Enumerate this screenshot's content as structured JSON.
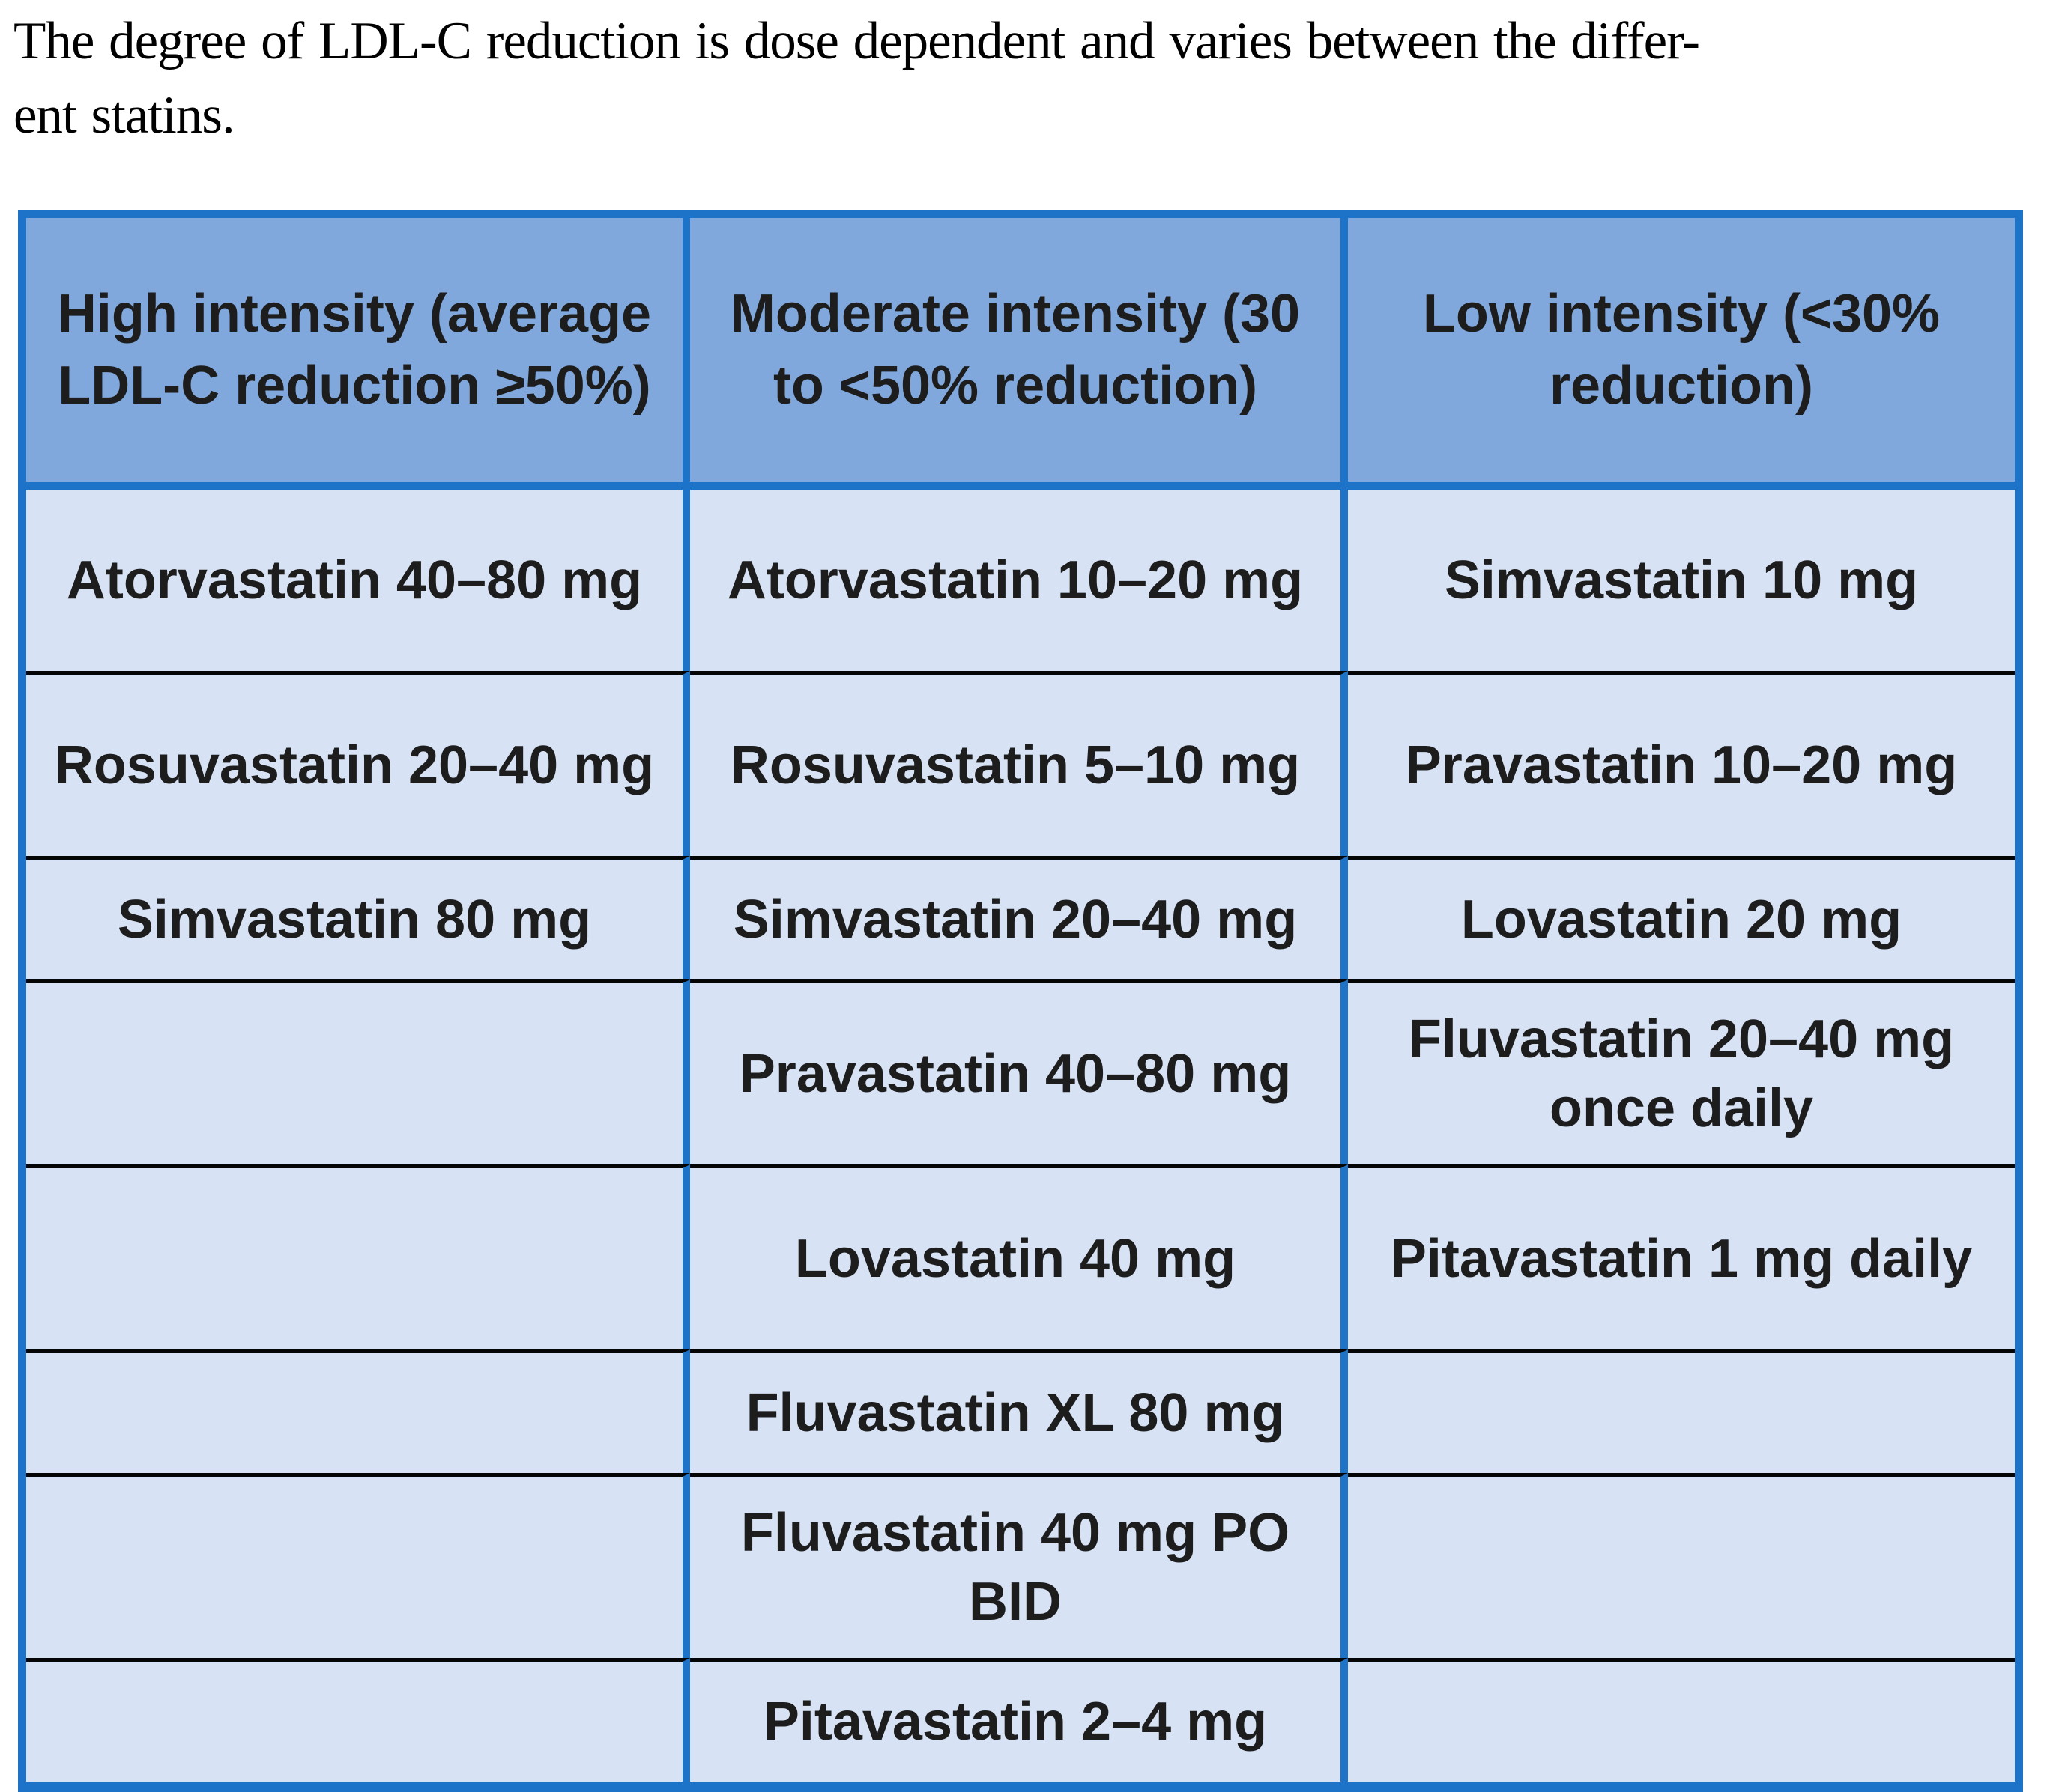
{
  "intro": {
    "line1": "The degree of LDL-C reduction is dose dependent and varies between the differ-",
    "line2": "ent statins."
  },
  "table": {
    "headers": [
      "High intensity (average LDL-C reduction ≥50%)",
      "Moderate intensity (30 to <50% reduction)",
      "Low intensity (<30% reduction)"
    ],
    "rows": [
      [
        "Atorvastatin 40–80 mg",
        "Atorvastatin 10–20 mg",
        "Simvastatin 10 mg"
      ],
      [
        "Rosuvastatin 20–40 mg",
        "Rosuvastatin 5–10 mg",
        "Pravastatin 10–20 mg"
      ],
      [
        "Simvastatin 80 mg",
        "Simvastatin 20–40 mg",
        "Lovastatin 20 mg"
      ],
      [
        "",
        "Pravastatin 40–80 mg",
        "Fluvastatin 20–40 mg once daily"
      ],
      [
        "",
        "Lovastatin 40 mg",
        "Pitavastatin 1 mg daily"
      ],
      [
        "",
        "Fluvastatin XL 80 mg",
        ""
      ],
      [
        "",
        "Fluvastatin 40 mg PO BID",
        ""
      ],
      [
        "",
        "Pitavastatin 2–4 mg",
        ""
      ]
    ],
    "colors": {
      "border_blue": "#1C73C8",
      "header_background": "#81A8DC",
      "cell_background": "#D7E2F4",
      "row_divider": "#050505"
    }
  }
}
